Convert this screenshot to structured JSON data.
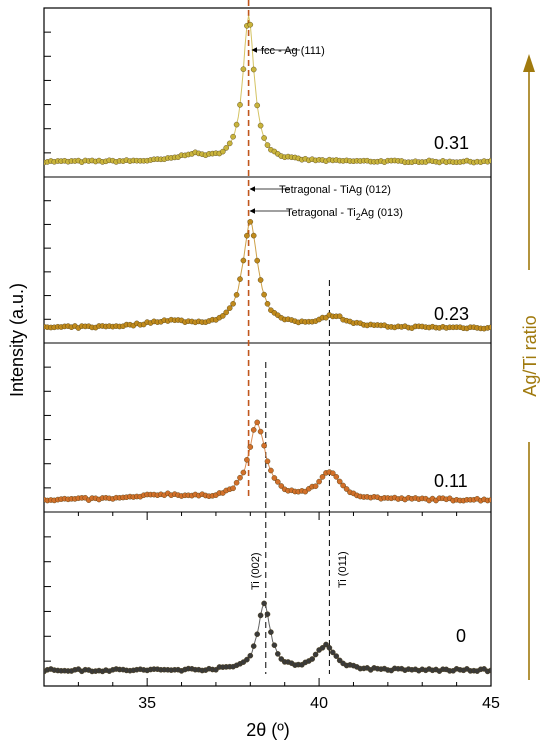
{
  "chart_data": {
    "type": "line",
    "xlabel": "2θ (º)",
    "ylabel": "Intensity (a.u.)",
    "xlim": [
      32,
      45
    ],
    "xticks": [
      35,
      40,
      45
    ],
    "panels_top_to_bottom": [
      "0.31",
      "0.23",
      "0.11",
      "0"
    ],
    "series": [
      {
        "name": "0.31",
        "color": "#c9b43c",
        "baseline": 0.07,
        "noise": 0.012,
        "peaks": [
          {
            "x": 36.3,
            "height": 0.04,
            "width": 0.45
          },
          {
            "x": 37.95,
            "height": 0.9,
            "width": 0.2
          }
        ]
      },
      {
        "name": "0.23",
        "color": "#c08a1c",
        "baseline": 0.07,
        "noise": 0.014,
        "peaks": [
          {
            "x": 35.6,
            "height": 0.04,
            "width": 0.8
          },
          {
            "x": 38.0,
            "height": 0.66,
            "width": 0.27
          },
          {
            "x": 40.4,
            "height": 0.07,
            "width": 0.5
          }
        ]
      },
      {
        "name": "0.11",
        "color": "#d2702a",
        "baseline": 0.05,
        "noise": 0.016,
        "peaks": [
          {
            "x": 35.5,
            "height": 0.03,
            "width": 0.8
          },
          {
            "x": 38.2,
            "height": 0.47,
            "width": 0.3
          },
          {
            "x": 40.3,
            "height": 0.17,
            "width": 0.36
          }
        ]
      },
      {
        "name": "0",
        "color": "#3a3a3a",
        "baseline": 0.07,
        "noise": 0.016,
        "peaks": [
          {
            "x": 38.4,
            "height": 0.4,
            "width": 0.22
          },
          {
            "x": 40.2,
            "height": 0.15,
            "width": 0.32
          }
        ]
      }
    ],
    "reference_lines": [
      {
        "x": 37.95,
        "color": "#c0561c",
        "style": "dashed",
        "panels": "0.31-0.11"
      },
      {
        "x": 38.45,
        "color": "#000000",
        "style": "dashed",
        "panels": "0.11-0"
      },
      {
        "x": 40.3,
        "color": "#000000",
        "style": "dashed",
        "panels": "0.23-0"
      }
    ],
    "annotations": {
      "fcc": "fcc - Ag (111)",
      "tiag": "Tetragonal - TiAg (012)",
      "ti2ag_prefix": "Tetragonal - Ti",
      "ti2ag_sub": "2",
      "ti2ag_suffix": "Ag (013)",
      "ti002": "Ti (002)",
      "ti011": "Ti (011)"
    },
    "arrow_label": "Ag/Ti ratio",
    "arrow_color": "#a07a0e"
  }
}
